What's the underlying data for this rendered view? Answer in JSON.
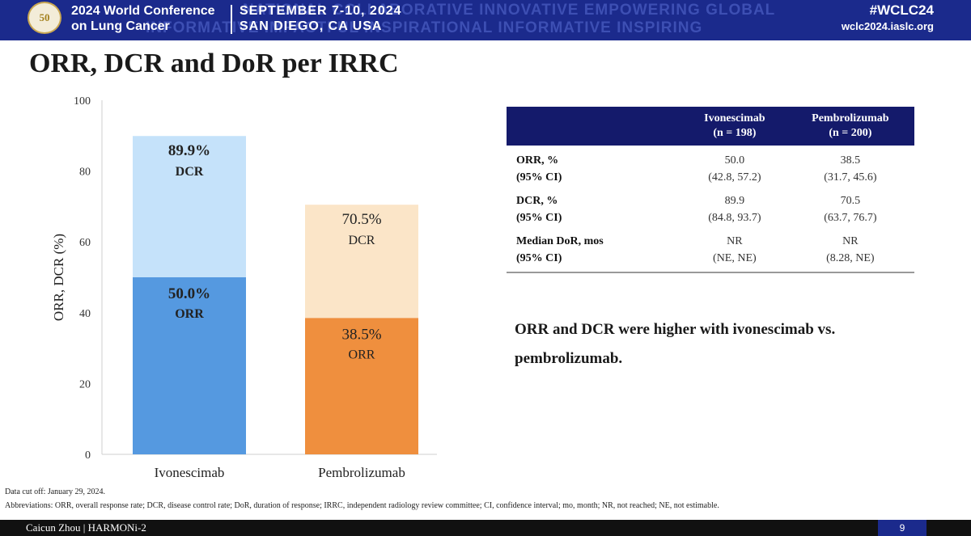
{
  "banner": {
    "conference_line1": "2024 World Conference",
    "conference_line2": "on Lung Cancer",
    "date_line1": "SEPTEMBER 7-10, 2024",
    "date_line2": "SAN DIEGO, CA USA",
    "hashtag": "#WCLC24",
    "website": "wclc2024.iaslc.org",
    "background_words_row1": "NATIONAL  COLLABORATIVE  INNOVATIVE  EMPOWERING  GLOBAL",
    "background_words_row2": "INFORMATIVE  IMPACTFUL  INSPIRATIONAL  INFORMATIVE  INSPIRING",
    "logo_text": "50",
    "colors": {
      "banner_bg": "#1b2a8c"
    }
  },
  "slide": {
    "title": "ORR, DCR and DoR per IRRC",
    "conclusion": "ORR and DCR were higher with ivonescimab vs. pembrolizumab."
  },
  "chart_data": {
    "type": "bar",
    "stacked": true,
    "categories": [
      "Ivonescimab",
      "Pembrolizumab"
    ],
    "ylabel": "ORR, DCR (%)",
    "ylim": [
      0,
      100
    ],
    "yticks": [
      0,
      20,
      40,
      60,
      80,
      100
    ],
    "bars": [
      {
        "category": "Ivonescimab",
        "orr": 50.0,
        "dcr": 89.9,
        "orr_label": "50.0%",
        "orr_text": "ORR",
        "dcr_label": "89.9%",
        "dcr_text": "DCR",
        "orr_color": "#5599e0",
        "dcr_color": "#c5e2fa",
        "bold_labels": true
      },
      {
        "category": "Pembrolizumab",
        "orr": 38.5,
        "dcr": 70.5,
        "orr_label": "38.5%",
        "orr_text": "ORR",
        "dcr_label": "70.5%",
        "dcr_text": "DCR",
        "orr_color": "#ef8f3e",
        "dcr_color": "#fbe5c8",
        "bold_labels": false
      }
    ]
  },
  "table": {
    "headers": [
      {
        "line1": "",
        "line2": ""
      },
      {
        "line1": "Ivonescimab",
        "line2": "(n = 198)"
      },
      {
        "line1": "Pembrolizumab",
        "line2": "(n = 200)"
      }
    ],
    "rows": [
      {
        "label1": "ORR, %",
        "label2": "(95% CI)",
        "ivo1": "50.0",
        "ivo2": "(42.8, 57.2)",
        "pem1": "38.5",
        "pem2": "(31.7, 45.6)"
      },
      {
        "label1": "DCR, %",
        "label2": "(95% CI)",
        "ivo1": "89.9",
        "ivo2": "(84.8, 93.7)",
        "pem1": "70.5",
        "pem2": "(63.7, 76.7)"
      },
      {
        "label1": "Median DoR, mos",
        "label2": "(95% CI)",
        "ivo1": "NR",
        "ivo2": "(NE, NE)",
        "pem1": "NR",
        "pem2": "(8.28, NE)"
      }
    ]
  },
  "footnotes": {
    "data_cutoff": "Data cut off: January 29, 2024.",
    "abbreviations": "Abbreviations: ORR, overall response rate; DCR, disease control rate; DoR, duration of response; IRRC, independent radiology review committee; CI, confidence interval; mo, month; NR, not reached; NE, not estimable."
  },
  "footer": {
    "presenter": "Caicun Zhou | HARMONi-2",
    "page_number": "9"
  }
}
